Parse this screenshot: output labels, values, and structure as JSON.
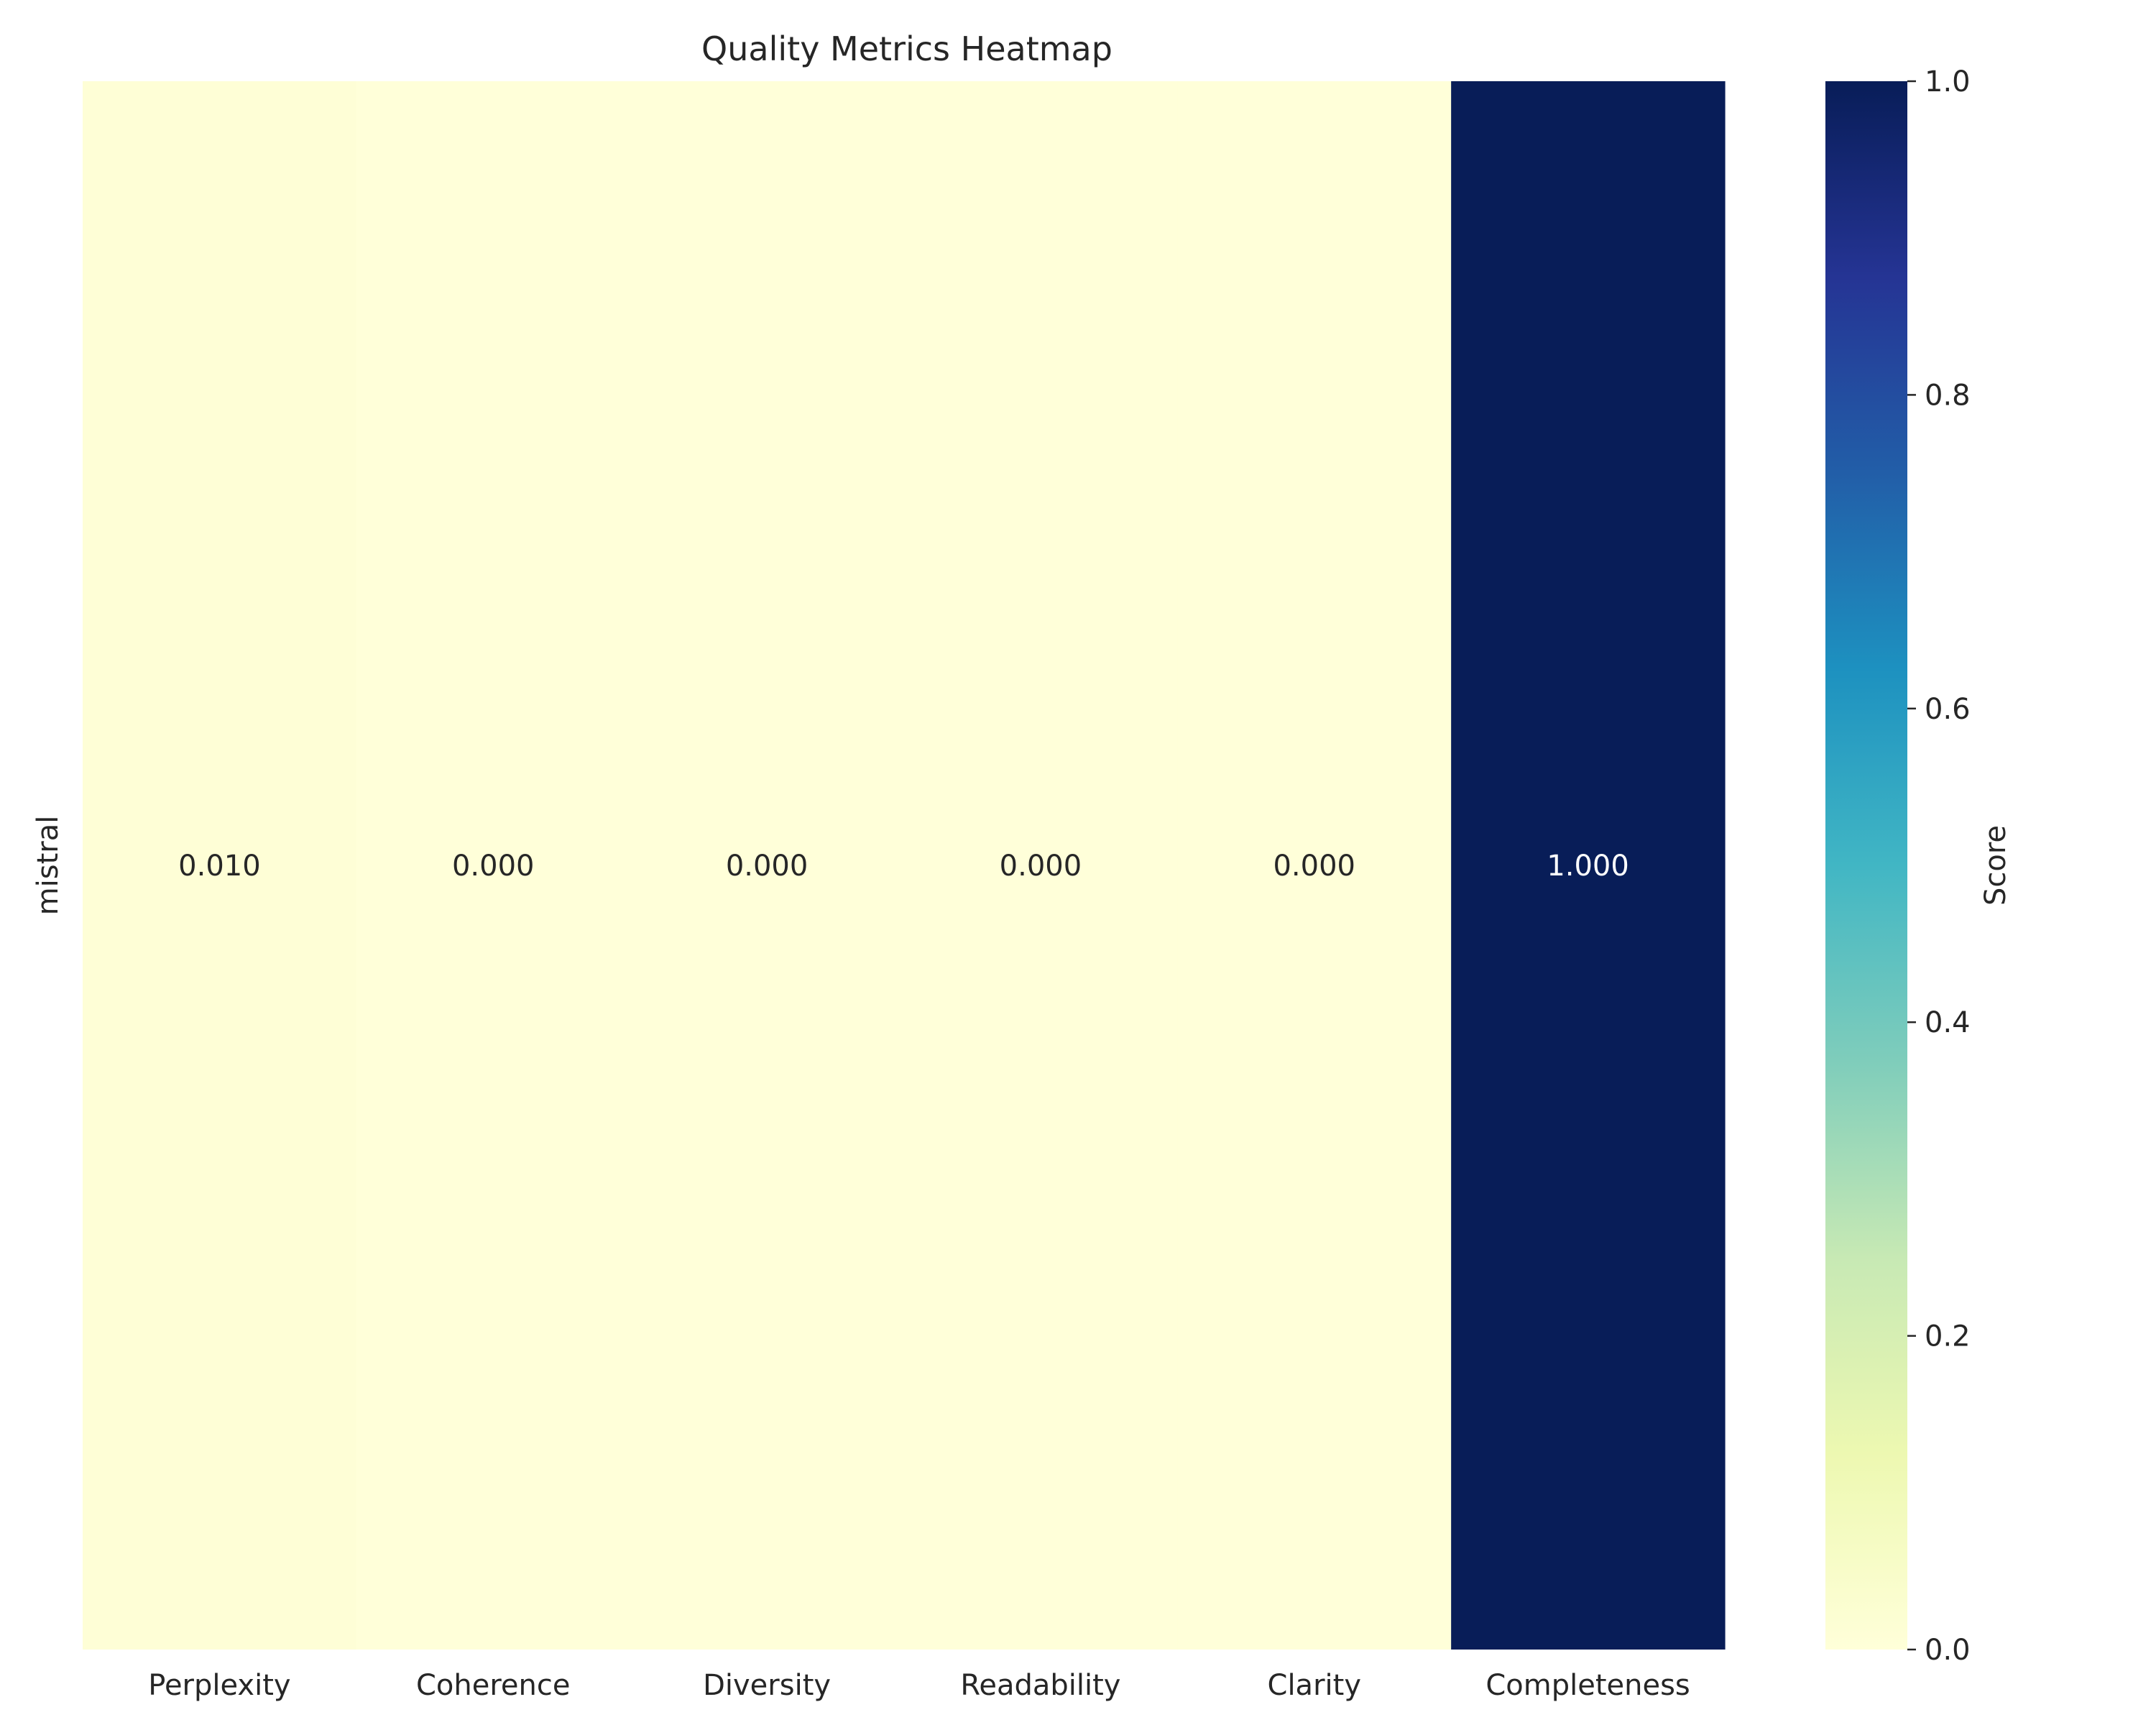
{
  "chart_data": {
    "type": "heatmap",
    "title": "Quality Metrics Heatmap",
    "xlabel": "",
    "ylabel": "",
    "x_categories": [
      "Perplexity",
      "Coherence",
      "Diversity",
      "Readability",
      "Clarity",
      "Completeness"
    ],
    "y_categories": [
      "mistral"
    ],
    "values": [
      [
        0.01,
        0.0,
        0.0,
        0.0,
        0.0,
        1.0
      ]
    ],
    "cell_labels": [
      [
        "0.010",
        "0.000",
        "0.000",
        "0.000",
        "0.000",
        "1.000"
      ]
    ],
    "colormap": "YlGnBu",
    "colorbar": {
      "label": "Score",
      "range": [
        0,
        1
      ],
      "ticks": [
        "0.0",
        "0.2",
        "0.4",
        "0.6",
        "0.8",
        "1.0"
      ]
    },
    "grid": false
  }
}
